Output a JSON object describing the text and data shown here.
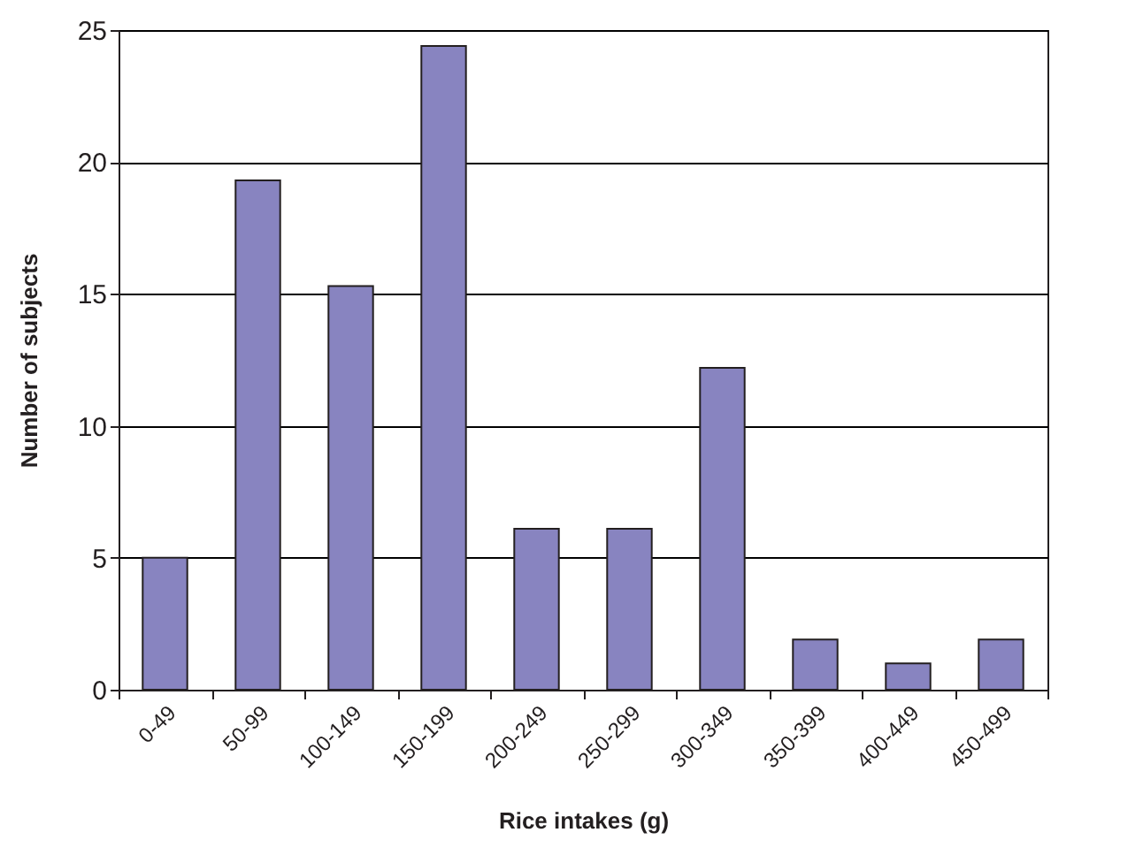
{
  "chart_data": {
    "type": "bar",
    "xlabel": "Rice intakes (g)",
    "ylabel": "Number of subjects",
    "categories": [
      "0-49",
      "50-99",
      "100-149",
      "150-199",
      "200-249",
      "250-299",
      "300-349",
      "350-399",
      "400-449",
      "450-499"
    ],
    "values": [
      5,
      19.3,
      15.3,
      24.4,
      6.1,
      6.1,
      12.2,
      1.9,
      1,
      1.9
    ],
    "color": "#8884c0",
    "ylim": [
      0,
      25
    ],
    "yticks": [
      0,
      5,
      10,
      15,
      20,
      25
    ],
    "grid": "y"
  }
}
